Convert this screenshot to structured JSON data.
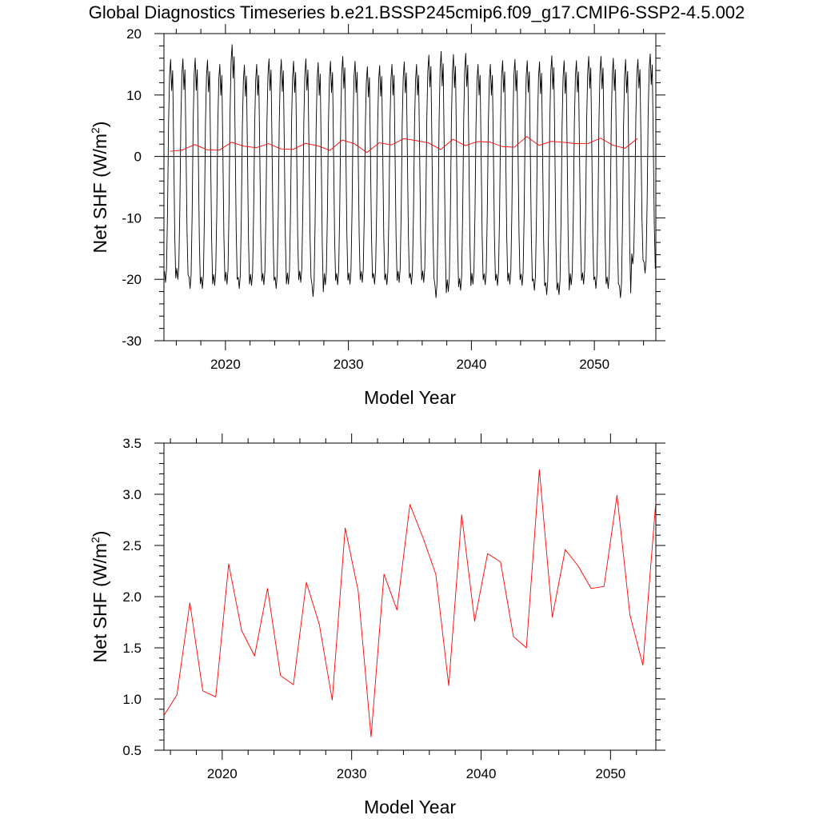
{
  "title": "Global Diagnostics Timeseries b.e21.BSSP245cmip6.f09_g17.CMIP6-SSP2-4.5.002",
  "chart_data": [
    {
      "type": "line",
      "xlabel": "Model Year",
      "ylabel": "Net SHF (W/m",
      "ylabel_superscript": "2",
      "ylabel_tail": ")",
      "xlim": [
        2015,
        2055
      ],
      "ylim": [
        -30,
        20
      ],
      "xticks": [
        2020,
        2030,
        2040,
        2050
      ],
      "yticks": [
        -30,
        -20,
        -10,
        0,
        10,
        20
      ],
      "xtick_labels": [
        "2020",
        "2030",
        "2040",
        "2050"
      ],
      "ytick_labels": [
        "-30",
        "-20",
        "-10",
        "0",
        "10",
        "20"
      ],
      "zero_line": true,
      "grid": false,
      "series": [
        {
          "color": "#000000",
          "kind": "monthly",
          "years": [
            2015,
            2016,
            2017,
            2018,
            2019,
            2020,
            2021,
            2022,
            2023,
            2024,
            2025,
            2026,
            2027,
            2028,
            2029,
            2030,
            2031,
            2032,
            2033,
            2034,
            2035,
            2036,
            2037,
            2038,
            2039,
            2040,
            2041,
            2042,
            2043,
            2044,
            2045,
            2046,
            2047,
            2048,
            2049,
            2050,
            2051,
            2052,
            2053,
            2054
          ],
          "annual_max": [
            15.8,
            15.9,
            16.0,
            15.7,
            15.0,
            18.2,
            14.9,
            15.0,
            15.9,
            15.8,
            15.5,
            15.9,
            15.3,
            15.5,
            16.3,
            15.5,
            14.6,
            14.8,
            15.0,
            15.4,
            15.0,
            16.5,
            17.1,
            16.6,
            16.8,
            15.0,
            15.0,
            15.6,
            15.8,
            15.6,
            15.4,
            16.4,
            15.6,
            15.6,
            16.3,
            16.3,
            16.0,
            15.8,
            15.8,
            16.7
          ],
          "annual_min": [
            -20.5,
            -20.0,
            -21.5,
            -21.5,
            -21.0,
            -20.8,
            -21.5,
            -21.0,
            -20.9,
            -21.5,
            -20.8,
            -20.5,
            -22.8,
            -20.9,
            -20.9,
            -20.8,
            -20.5,
            -20.8,
            -20.9,
            -20.5,
            -20.8,
            -20.5,
            -23.0,
            -22.0,
            -21.8,
            -20.8,
            -20.9,
            -21.0,
            -20.8,
            -21.0,
            -21.8,
            -22.5,
            -22.5,
            -20.9,
            -20.8,
            -21.5,
            -21.5,
            -23.0,
            -17.5,
            -19.0
          ]
        },
        {
          "color": "#ff0000",
          "kind": "annual",
          "x": [
            2015.5,
            2016.5,
            2017.5,
            2018.5,
            2019.5,
            2020.5,
            2021.5,
            2022.5,
            2023.5,
            2024.5,
            2025.5,
            2026.5,
            2027.5,
            2028.5,
            2029.5,
            2030.5,
            2031.5,
            2032.5,
            2033.5,
            2034.5,
            2035.5,
            2036.5,
            2037.5,
            2038.5,
            2039.5,
            2040.5,
            2041.5,
            2042.5,
            2043.5,
            2044.5,
            2045.5,
            2046.5,
            2047.5,
            2048.5,
            2049.5,
            2050.5,
            2051.5,
            2052.5,
            2053.5
          ],
          "y": [
            0.84,
            1.04,
            1.94,
            1.08,
            1.02,
            2.32,
            1.67,
            1.42,
            2.08,
            1.23,
            1.14,
            2.14,
            1.73,
            0.99,
            2.67,
            2.06,
            0.63,
            2.22,
            1.87,
            2.9,
            2.58,
            2.22,
            1.13,
            2.8,
            1.76,
            2.42,
            2.34,
            1.61,
            1.5,
            3.24,
            1.8,
            2.46,
            2.3,
            2.08,
            2.1,
            2.99,
            1.82,
            1.33,
            2.93
          ]
        }
      ]
    },
    {
      "type": "line",
      "xlabel": "Model Year",
      "ylabel": "Net SHF (W/m",
      "ylabel_superscript": "2",
      "ylabel_tail": ")",
      "xlim": [
        2015.5,
        2053.5
      ],
      "ylim": [
        0.5,
        3.5
      ],
      "xticks": [
        2020,
        2030,
        2040,
        2050
      ],
      "yticks": [
        0.5,
        1.0,
        1.5,
        2.0,
        2.5,
        3.0,
        3.5
      ],
      "xtick_labels": [
        "2020",
        "2030",
        "2040",
        "2050"
      ],
      "ytick_labels": [
        "0.5",
        "1.0",
        "1.5",
        "2.0",
        "2.5",
        "3.0",
        "3.5"
      ],
      "zero_line": false,
      "grid": false,
      "series": [
        {
          "color": "#ff0000",
          "kind": "annual",
          "x": [
            2015.5,
            2016.5,
            2017.5,
            2018.5,
            2019.5,
            2020.5,
            2021.5,
            2022.5,
            2023.5,
            2024.5,
            2025.5,
            2026.5,
            2027.5,
            2028.5,
            2029.5,
            2030.5,
            2031.5,
            2032.5,
            2033.5,
            2034.5,
            2035.5,
            2036.5,
            2037.5,
            2038.5,
            2039.5,
            2040.5,
            2041.5,
            2042.5,
            2043.5,
            2044.5,
            2045.5,
            2046.5,
            2047.5,
            2048.5,
            2049.5,
            2050.5,
            2051.5,
            2052.5,
            2053.5
          ],
          "y": [
            0.84,
            1.04,
            1.94,
            1.08,
            1.02,
            2.32,
            1.67,
            1.42,
            2.08,
            1.23,
            1.14,
            2.14,
            1.73,
            0.99,
            2.67,
            2.06,
            0.63,
            2.22,
            1.87,
            2.9,
            2.58,
            2.22,
            1.13,
            2.8,
            1.76,
            2.42,
            2.34,
            1.61,
            1.5,
            3.24,
            1.8,
            2.46,
            2.3,
            2.08,
            2.1,
            2.99,
            1.82,
            1.33,
            2.93
          ]
        }
      ]
    }
  ]
}
